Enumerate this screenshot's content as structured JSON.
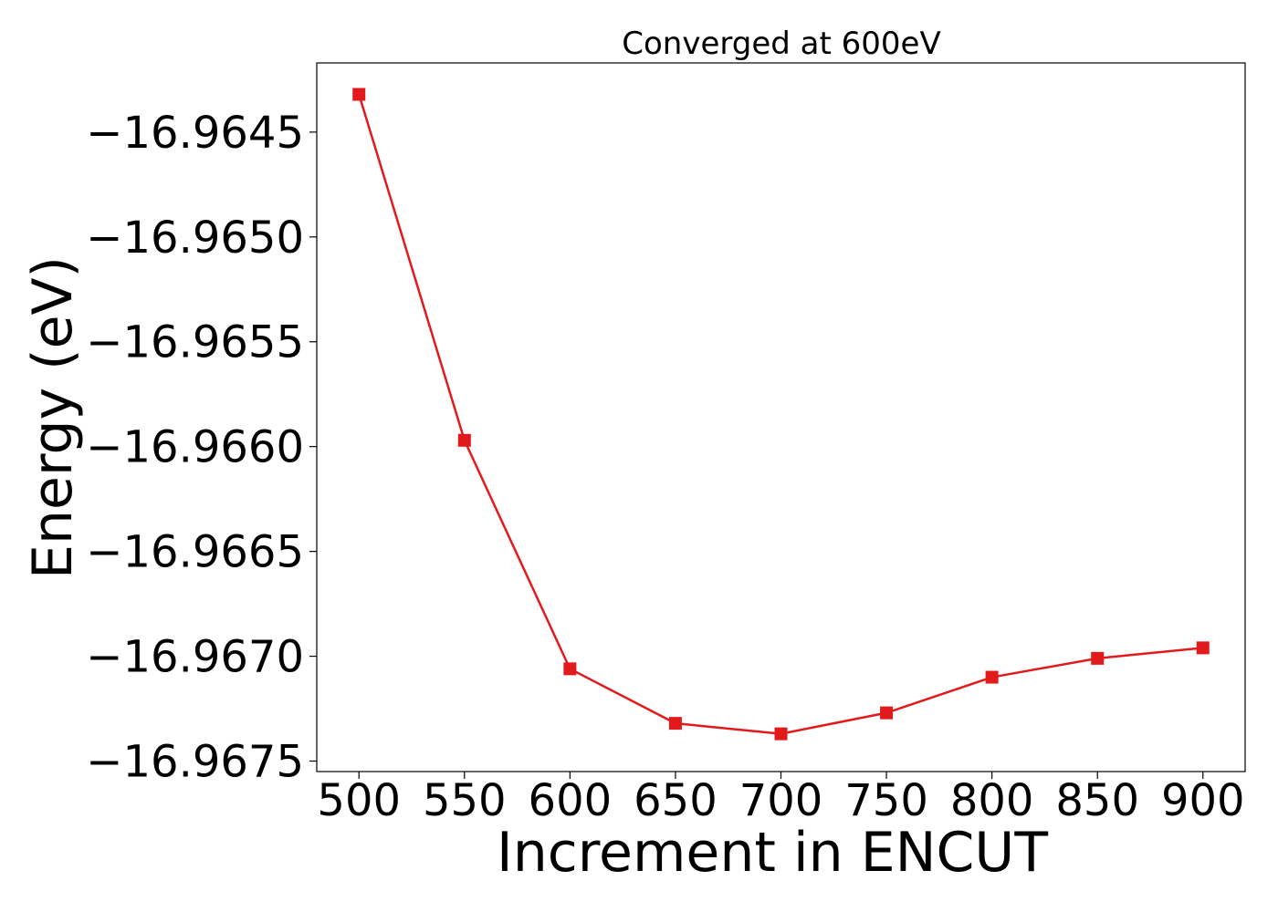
{
  "chart_data": {
    "type": "line",
    "title": "Converged at 600eV",
    "xlabel": "Increment in ENCUT",
    "ylabel": "Energy (eV)",
    "x": [
      500,
      550,
      600,
      650,
      700,
      750,
      800,
      850,
      900
    ],
    "series": [
      {
        "values": [
          -16.96432,
          -16.96597,
          -16.96706,
          -16.96732,
          -16.96737,
          -16.96727,
          -16.9671,
          -16.96701,
          -16.96696
        ],
        "color": "#e31a1c",
        "marker": "square"
      }
    ],
    "xticks": [
      500,
      550,
      600,
      650,
      700,
      750,
      800,
      850,
      900
    ],
    "xtick_labels": [
      "500",
      "550",
      "600",
      "650",
      "700",
      "750",
      "800",
      "850",
      "900"
    ],
    "yticks": [
      -16.9645,
      -16.965,
      -16.9655,
      -16.966,
      -16.9665,
      -16.967,
      -16.9675
    ],
    "ytick_labels": [
      "−16.9645",
      "−16.9650",
      "−16.9655",
      "−16.9660",
      "−16.9665",
      "−16.9670",
      "−16.9675"
    ],
    "xlim": [
      480,
      920
    ],
    "ylim": [
      -16.96755,
      -16.96417
    ],
    "grid": false,
    "legend": false
  }
}
